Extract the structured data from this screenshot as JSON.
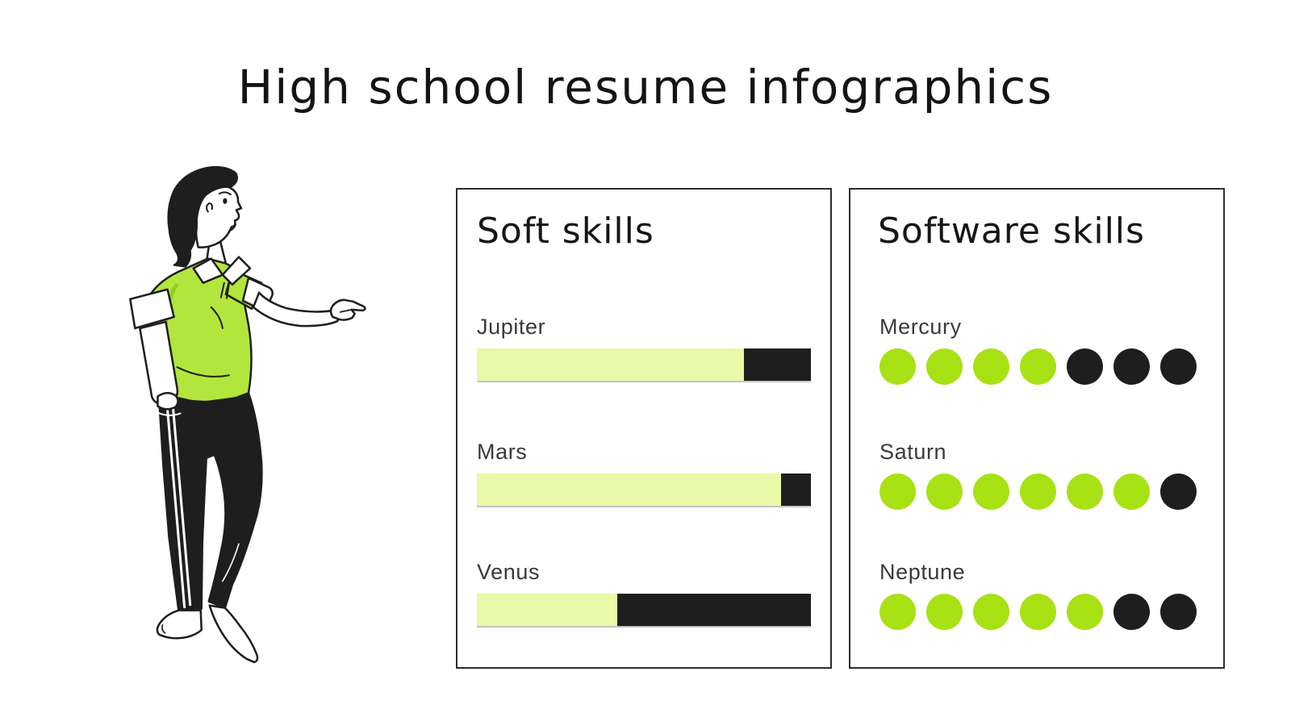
{
  "page": {
    "title": "High school resume infographics",
    "background": "#ffffff"
  },
  "colors": {
    "accent_green": "#a8e114",
    "pale_green": "#e9f8a9",
    "ink_dark": "#1e1e1e",
    "label_gray": "#3a3a3a",
    "card_border": "#2e2e2e",
    "bar_underline": "#c4c4c4",
    "shirt_green": "#b2e63c",
    "shirt_shade_green": "#93cc25"
  },
  "illustration": {
    "name": "man-pointing-right",
    "description": "Line-art man with black hair, green polo with white collar and rolled cuffs, black joggers with white side stripes, bare feet, pointing right at the skills cards"
  },
  "chart_data": [
    {
      "type": "bar",
      "variant": "progress-bars",
      "orientation": "horizontal",
      "title": "Soft skills",
      "categories": [
        "Jupiter",
        "Mars",
        "Venus"
      ],
      "values": [
        80,
        91,
        42
      ],
      "unit": "%",
      "xlim": [
        0,
        100
      ],
      "grid": false,
      "legend": false,
      "fill_color": "#e9f8a9",
      "track_color": "#1e1e1e"
    },
    {
      "type": "bar",
      "variant": "dot-rating",
      "orientation": "horizontal",
      "title": "Software skills",
      "categories": [
        "Mercury",
        "Saturn",
        "Neptune"
      ],
      "values": [
        4,
        6,
        5
      ],
      "max": 7,
      "grid": false,
      "legend": false,
      "filled_color": "#a8e114",
      "empty_color": "#1e1e1e"
    }
  ]
}
